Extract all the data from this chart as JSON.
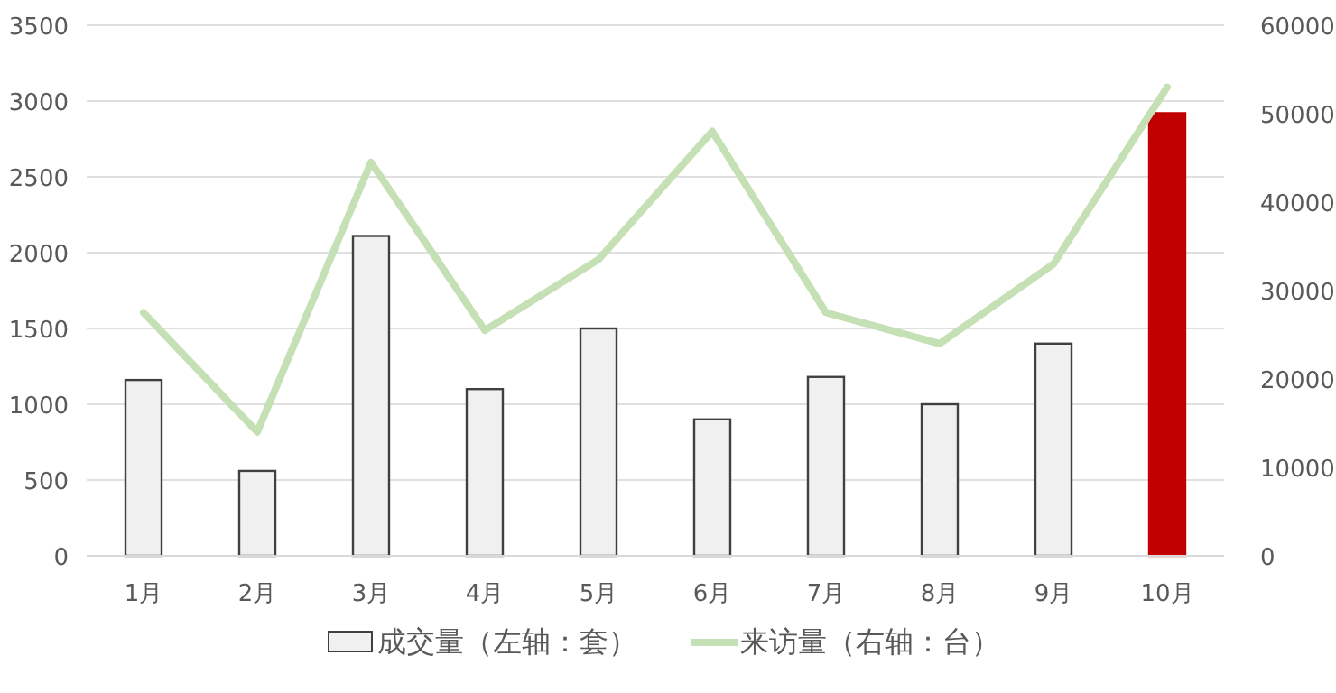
{
  "chart_data": {
    "type": "bar",
    "categories": [
      "1月",
      "2月",
      "3月",
      "4月",
      "5月",
      "6月",
      "7月",
      "8月",
      "9月",
      "10月"
    ],
    "series": [
      {
        "name": "成交量（左轴：套）",
        "color": "#f0f0f0",
        "colors": [
          "#f0f0f0",
          "#f0f0f0",
          "#f0f0f0",
          "#f0f0f0",
          "#f0f0f0",
          "#f0f0f0",
          "#f0f0f0",
          "#f0f0f0",
          "#f0f0f0",
          "#c00000"
        ],
        "values": [
          1160,
          560,
          2110,
          1100,
          1500,
          900,
          1180,
          1000,
          1400,
          2920
        ]
      },
      {
        "name": "来访量（右轴：台）",
        "type": "line",
        "axis": "y2",
        "color": "#c5e0b4",
        "values": [
          27500,
          14000,
          44500,
          25500,
          33500,
          48000,
          27500,
          24000,
          33000,
          53000
        ]
      }
    ],
    "ylim": [
      0,
      3500
    ],
    "yticks": [
      0,
      500,
      1000,
      1500,
      2000,
      2500,
      3000,
      3500
    ],
    "y2lim": [
      0,
      60000
    ],
    "y2ticks": [
      0,
      10000,
      20000,
      30000,
      40000,
      50000,
      60000
    ],
    "grid": "y",
    "legend": "bottom"
  }
}
